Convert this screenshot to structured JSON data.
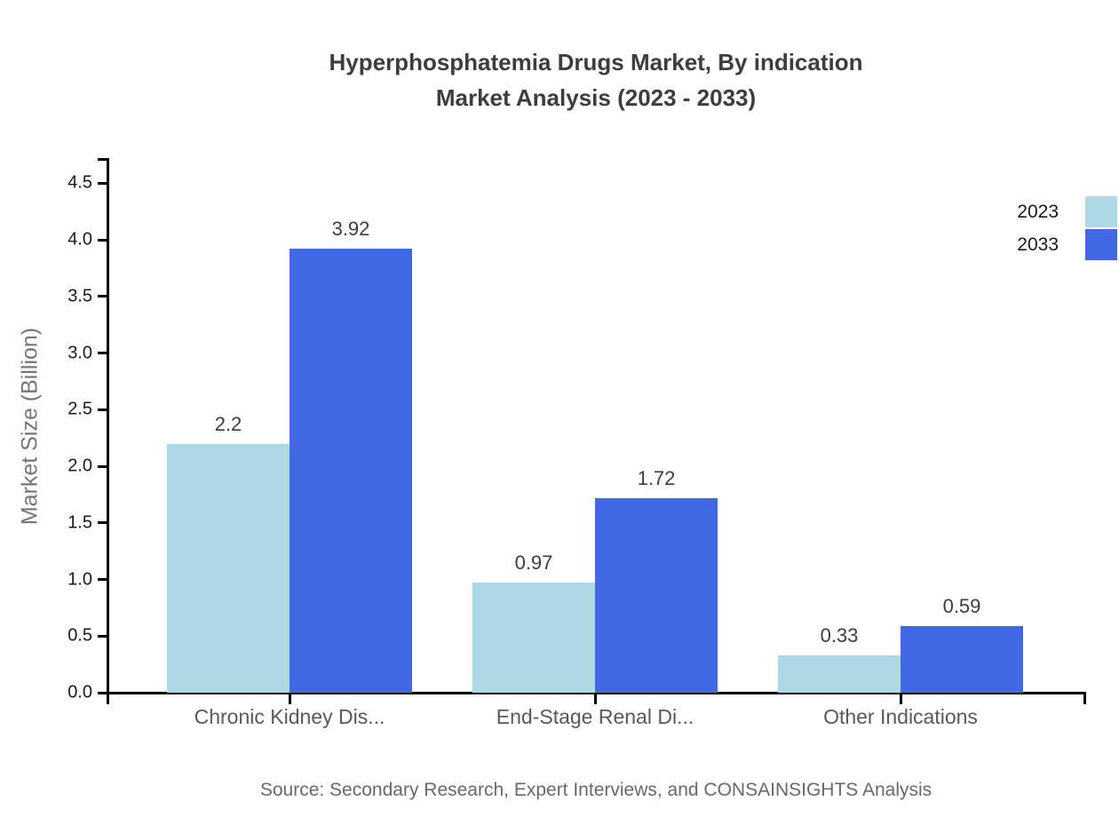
{
  "title": {
    "line1": "Hyperphosphatemia Drugs Market, By indication",
    "line2": "Market Analysis (2023 - 2033)"
  },
  "source": "Source: Secondary Research, Expert Interviews, and CONSAINSIGHTS Analysis",
  "legend": {
    "items": [
      {
        "label": "2023",
        "color": "#add8e6"
      },
      {
        "label": "2033",
        "color": "#4169e1"
      }
    ]
  },
  "chart_data": {
    "type": "bar",
    "title": "Hyperphosphatemia Drugs Market, By indication Market Analysis (2023 - 2033)",
    "categories": [
      "Chronic Kidney Dis...",
      "End-Stage Renal Di...",
      "Other Indications"
    ],
    "series": [
      {
        "name": "2023",
        "color": "#add8e6",
        "values": [
          2.2,
          0.97,
          0.33
        ]
      },
      {
        "name": "2033",
        "color": "#4169e1",
        "values": [
          3.92,
          1.72,
          0.59
        ]
      }
    ],
    "xlabel": "",
    "ylabel": "Market Size (Billion)",
    "ylim": [
      0,
      4.5
    ],
    "ytick_step": 0.5,
    "yticks": [
      "0.0",
      "0.5",
      "1.0",
      "1.5",
      "2.0",
      "2.5",
      "3.0",
      "3.5",
      "4.0",
      "4.5"
    ],
    "grid": false,
    "legend_position": "top-right",
    "value_labels_shown": true
  }
}
